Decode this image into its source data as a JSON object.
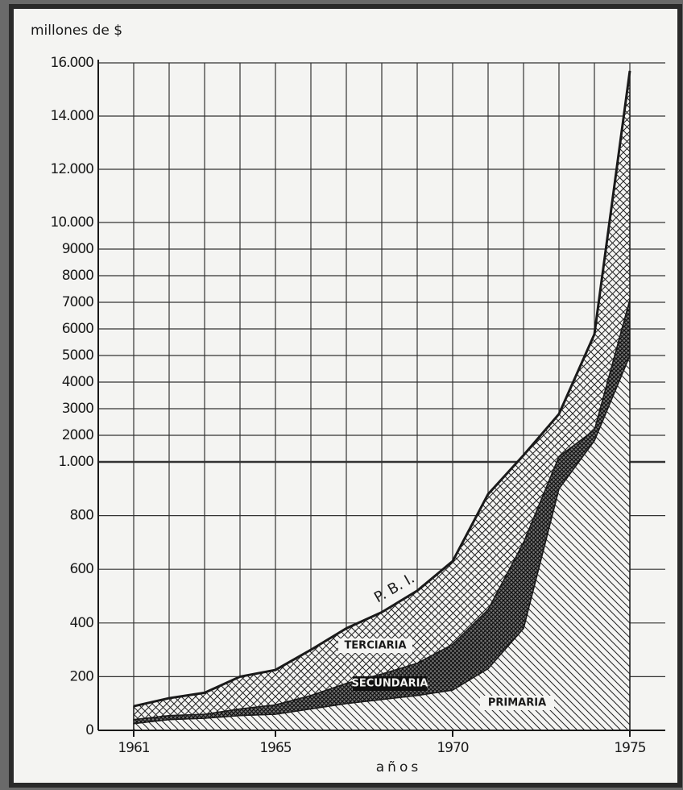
{
  "chart_data": {
    "type": "stacked_area",
    "ylabel": "millones de $",
    "xlabel": "años",
    "x": [
      1961,
      1962,
      1963,
      1964,
      1965,
      1966,
      1967,
      1968,
      1969,
      1970,
      1971,
      1972,
      1973,
      1974,
      1975
    ],
    "xlim": [
      1960,
      1976
    ],
    "xticks": [
      1961,
      1965,
      1970,
      1975
    ],
    "ylim": [
      0,
      16000
    ],
    "ybreak": 1000,
    "yticks": [
      0,
      200,
      400,
      600,
      800,
      {
        "value": 1000,
        "label": "1.000"
      },
      2000,
      3000,
      4000,
      5000,
      6000,
      7000,
      8000,
      9000,
      {
        "value": 10000,
        "label": "10.000"
      },
      {
        "value": 12000,
        "label": "12.000"
      },
      {
        "value": 14000,
        "label": "14.000"
      },
      {
        "value": 16000,
        "label": "16.000"
      }
    ],
    "grid": true,
    "series": [
      {
        "name": "PRIMARIA",
        "color": "#1a1a1a",
        "values": [
          25,
          40,
          45,
          55,
          60,
          80,
          100,
          115,
          130,
          150,
          230,
          380,
          900,
          1800,
          5000
        ]
      },
      {
        "name": "SECUNDARIA",
        "color": "#1a1a1a",
        "values": [
          15,
          15,
          15,
          25,
          35,
          50,
          75,
          95,
          120,
          170,
          220,
          320,
          300,
          400,
          2100
        ]
      },
      {
        "name": "TERCIARIA",
        "color": "#1a1a1a",
        "values": [
          50,
          65,
          80,
          120,
          130,
          170,
          205,
          230,
          270,
          310,
          430,
          550,
          1600,
          3600,
          8600
        ]
      }
    ],
    "annotations": [
      "P.  B.  I."
    ]
  }
}
